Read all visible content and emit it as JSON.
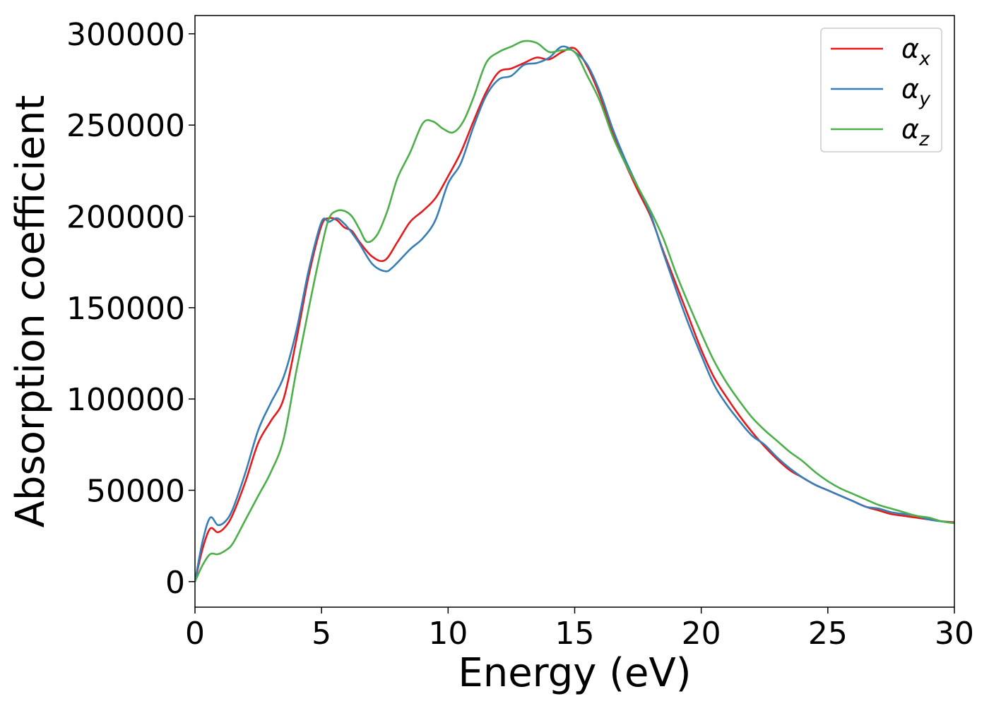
{
  "chart_data": {
    "type": "line",
    "title": "",
    "xlabel": "Energy (eV)",
    "ylabel": "Absorption coefficient",
    "xlim": [
      0,
      30
    ],
    "ylim": [
      -14000,
      310000
    ],
    "xticks": [
      0,
      5,
      10,
      15,
      20,
      25,
      30
    ],
    "xtick_labels": [
      "0",
      "5",
      "10",
      "15",
      "20",
      "25",
      "30"
    ],
    "yticks": [
      0,
      50000,
      100000,
      150000,
      200000,
      250000,
      300000
    ],
    "ytick_labels": [
      "0",
      "50000",
      "100000",
      "150000",
      "200000",
      "250000",
      "300000"
    ],
    "grid": false,
    "legend_position": "top-right",
    "series": [
      {
        "name": "α_x",
        "label_base": "α",
        "label_sub": "x",
        "color": "#e41a1c",
        "x": [
          0,
          0.3,
          0.6,
          0.9,
          1.2,
          1.5,
          2.0,
          2.5,
          3.0,
          3.5,
          4.0,
          4.5,
          5.0,
          5.3,
          5.6,
          5.9,
          6.2,
          6.5,
          7.0,
          7.5,
          8.0,
          8.5,
          9.0,
          9.5,
          10.0,
          10.5,
          11.0,
          11.5,
          12.0,
          12.5,
          13.0,
          13.5,
          14.0,
          14.5,
          15.0,
          15.5,
          16.0,
          16.5,
          17.0,
          17.5,
          18.0,
          18.5,
          19.0,
          19.5,
          20.0,
          20.5,
          21.0,
          21.5,
          22.0,
          22.5,
          23.0,
          23.5,
          24.0,
          24.5,
          25.0,
          25.5,
          26.0,
          26.5,
          27.0,
          27.5,
          28.0,
          28.5,
          29.0,
          29.5,
          30.0
        ],
        "y": [
          0,
          18000,
          29000,
          27000,
          30000,
          37000,
          55000,
          76000,
          88000,
          100000,
          132000,
          168000,
          195000,
          199000,
          198000,
          194000,
          192000,
          186000,
          178000,
          176000,
          186000,
          197000,
          203000,
          210000,
          222000,
          235000,
          252000,
          268000,
          279000,
          281000,
          284000,
          287000,
          286000,
          290000,
          292000,
          282000,
          266000,
          246000,
          229000,
          214000,
          200000,
          181000,
          163000,
          145000,
          127000,
          112000,
          101000,
          91000,
          82000,
          74000,
          67000,
          61000,
          57000,
          53000,
          50000,
          47000,
          44000,
          41000,
          39000,
          37000,
          36000,
          35000,
          34000,
          33000,
          32500
        ]
      },
      {
        "name": "α_y",
        "label_base": "α",
        "label_sub": "y",
        "color": "#377eb8",
        "x": [
          0,
          0.3,
          0.6,
          0.9,
          1.2,
          1.5,
          2.0,
          2.5,
          3.0,
          3.5,
          4.0,
          4.5,
          5.0,
          5.3,
          5.6,
          5.9,
          6.2,
          6.5,
          7.0,
          7.5,
          7.8,
          8.5,
          9.0,
          9.5,
          10.0,
          10.5,
          11.0,
          11.5,
          12.0,
          12.5,
          13.0,
          13.5,
          14.0,
          14.5,
          15.0,
          15.5,
          16.0,
          16.5,
          17.0,
          17.5,
          18.0,
          18.5,
          19.0,
          19.5,
          20.0,
          20.5,
          21.0,
          21.5,
          22.0,
          22.5,
          23.0,
          23.5,
          24.0,
          24.5,
          25.0,
          25.5,
          26.0,
          26.5,
          27.0,
          27.5,
          28.0,
          28.5,
          29.0,
          29.5,
          30.0
        ],
        "y": [
          0,
          22000,
          35000,
          31000,
          33000,
          40000,
          60000,
          83000,
          98000,
          112000,
          137000,
          171000,
          197000,
          197000,
          199000,
          196000,
          191000,
          185000,
          174000,
          170000,
          172000,
          182000,
          188000,
          198000,
          218000,
          229000,
          249000,
          266000,
          275000,
          277000,
          283000,
          284000,
          287000,
          293000,
          290000,
          283000,
          268000,
          248000,
          231000,
          216000,
          201000,
          180000,
          160000,
          141000,
          124000,
          108000,
          97000,
          88000,
          80000,
          75000,
          68000,
          62000,
          57000,
          53000,
          50000,
          47000,
          44000,
          41000,
          40000,
          38000,
          37000,
          36000,
          34000,
          33000,
          32000
        ]
      },
      {
        "name": "α_z",
        "label_base": "α",
        "label_sub": "z",
        "color": "#4daf4a",
        "x": [
          0,
          0.3,
          0.6,
          0.9,
          1.2,
          1.5,
          2.0,
          2.5,
          3.0,
          3.5,
          4.0,
          4.5,
          5.0,
          5.3,
          5.6,
          5.9,
          6.2,
          6.5,
          6.8,
          7.2,
          7.6,
          8.0,
          8.5,
          9.0,
          9.4,
          9.8,
          10.2,
          10.6,
          11.0,
          11.5,
          12.0,
          12.5,
          13.0,
          13.5,
          14.0,
          14.5,
          15.0,
          15.5,
          16.0,
          16.5,
          17.0,
          17.5,
          18.0,
          18.5,
          19.0,
          19.5,
          20.0,
          20.5,
          21.0,
          21.5,
          22.0,
          22.5,
          23.0,
          23.5,
          24.0,
          24.5,
          25.0,
          25.5,
          26.0,
          26.5,
          27.0,
          27.5,
          28.0,
          28.5,
          29.0,
          29.5,
          30.0
        ],
        "y": [
          0,
          9000,
          15000,
          15000,
          17000,
          21000,
          34000,
          47000,
          60000,
          78000,
          115000,
          150000,
          183000,
          199000,
          203000,
          203000,
          200000,
          193000,
          186000,
          190000,
          203000,
          221000,
          235000,
          251000,
          252000,
          248000,
          246000,
          252000,
          265000,
          284000,
          290000,
          293000,
          296000,
          295000,
          290000,
          291000,
          290000,
          277000,
          263000,
          244000,
          229000,
          216000,
          203000,
          188000,
          169000,
          152000,
          136000,
          121000,
          109000,
          99000,
          90000,
          83000,
          77000,
          71000,
          66000,
          60000,
          55000,
          51000,
          48000,
          45000,
          42000,
          40000,
          38000,
          36000,
          35000,
          33000,
          32000
        ]
      }
    ]
  }
}
